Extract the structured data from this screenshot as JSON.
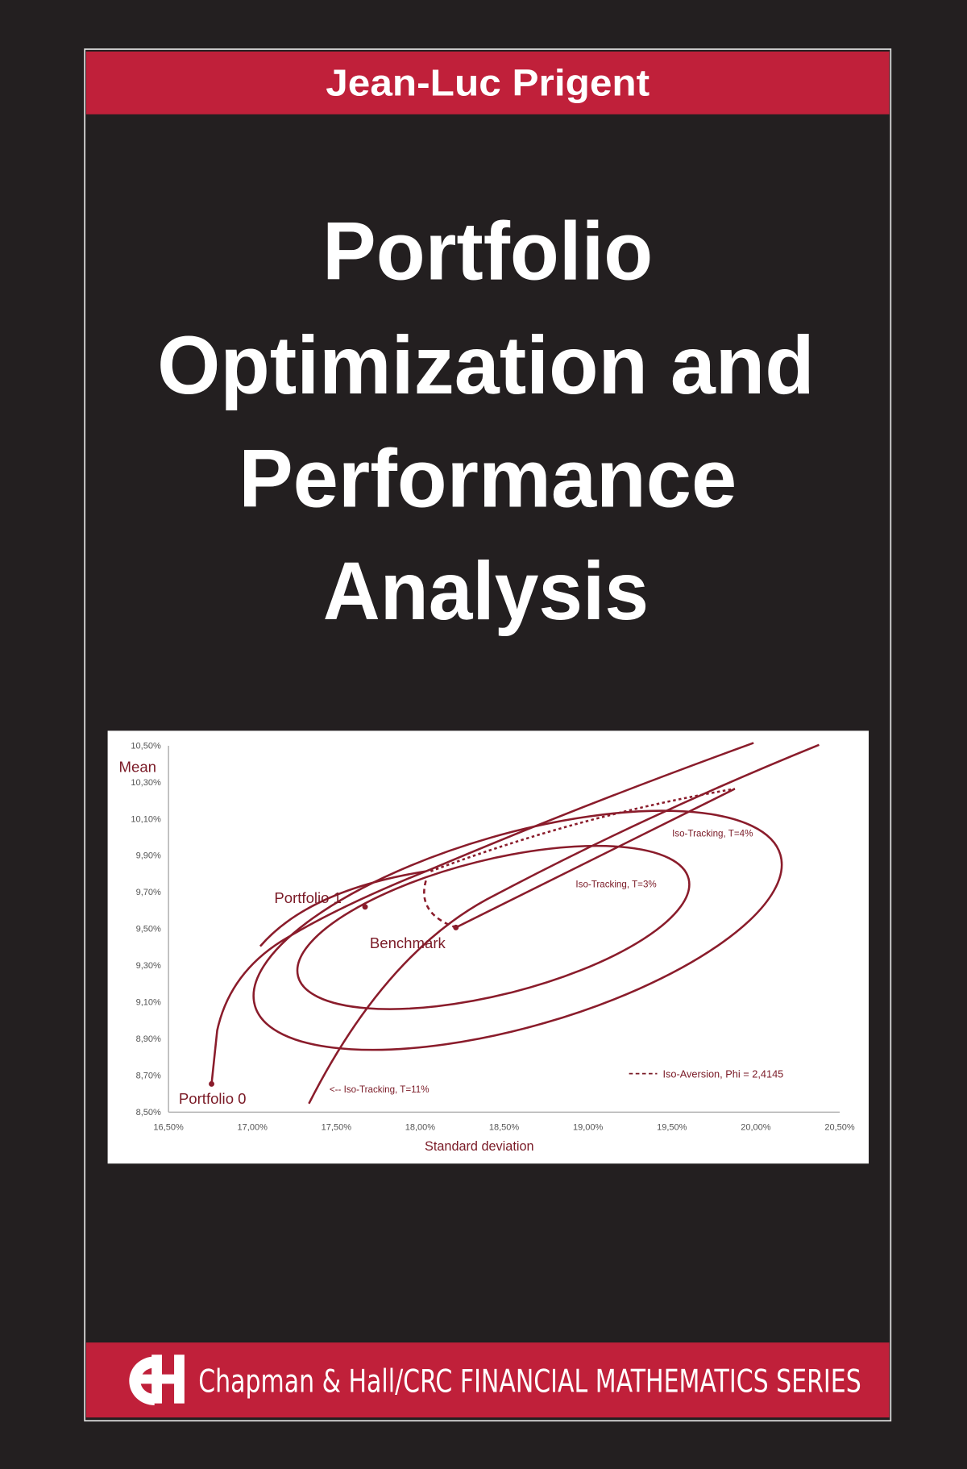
{
  "cover": {
    "author": "Jean-Luc Prigent",
    "title_lines": [
      "Portfolio",
      "Optimization and",
      "Performance",
      "Analysis"
    ],
    "series": "Chapman & Hall/CRC FINANCIAL MATHEMATICS SERIES"
  },
  "figure": {
    "y_label": "Mean",
    "x_label": "Standard deviation",
    "yticks": [
      "10,50%",
      "10,30%",
      "10,10%",
      "9,90%",
      "9,70%",
      "9,50%",
      "9,30%",
      "9,10%",
      "8,90%",
      "8,70%",
      "8,50%"
    ],
    "xticks": [
      "16,50%",
      "17,00%",
      "17,50%",
      "18,00%",
      "18,50%",
      "19,00%",
      "19,50%",
      "20,00%",
      "20,50%"
    ],
    "annotations": [
      "Portfolio 1",
      "Benchmark",
      "Portfolio 0",
      "Iso-Tracking, T=4%",
      "Iso-Tracking, T=3%",
      "<-- Iso-Tracking, T=11%"
    ],
    "legend": "Iso-Aversion, Phi = 2,4145"
  }
}
